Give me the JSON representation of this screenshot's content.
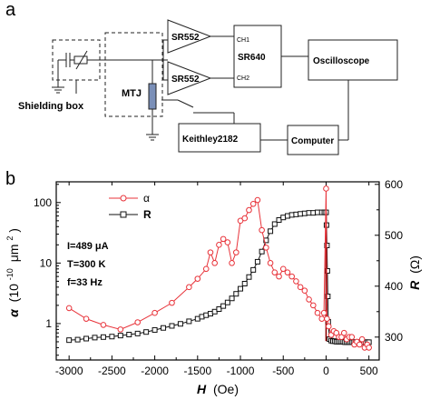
{
  "schematic": {
    "panel_label": "a",
    "components": {
      "amp1": "SR552",
      "amp2": "SR552",
      "lockin": "SR640",
      "ch1": "CH1",
      "ch2": "CH2",
      "scope": "Oscilloscope",
      "mtj": "MTJ",
      "shield": "Shielding box",
      "keithley": "Keithley2182",
      "computer": "Computer"
    }
  },
  "chart_data": {
    "type": "line",
    "panel_label": "b",
    "xlabel_var": "H",
    "xlabel_unit": "(Oe)",
    "ylabel_left_var": "α",
    "ylabel_left_unit": "(10",
    "ylabel_left_exp": "-10",
    "ylabel_left_unit2": "μm",
    "ylabel_left_sup2": "2",
    "ylabel_left_close": ")",
    "ylabel_right_var": "R",
    "ylabel_right_unit": "(Ω)",
    "x_ticks": [
      "-3000",
      "-2500",
      "-2000",
      "-1500",
      "-1000",
      "-500",
      "0",
      "500"
    ],
    "x_tick_values": [
      -3000,
      -2500,
      -2000,
      -1500,
      -1000,
      -500,
      0,
      500
    ],
    "xlim": [
      -3150,
      620
    ],
    "left_axis": {
      "scale": "log",
      "ylim": [
        0.25,
        220
      ],
      "ticks": [
        "1",
        "10",
        "100"
      ],
      "tick_values": [
        1,
        10,
        100
      ]
    },
    "right_axis": {
      "scale": "linear",
      "ylim": [
        255,
        605
      ],
      "ticks": [
        "300",
        "400",
        "500",
        "600"
      ],
      "tick_values": [
        300,
        400,
        500,
        600
      ]
    },
    "annotations": [
      "I=489 μA",
      "T=300 K",
      "f=33 Hz"
    ],
    "legend": {
      "placement": "top-left",
      "entries": [
        "α",
        "R"
      ]
    },
    "series": [
      {
        "name": "α",
        "axis": "left",
        "color": "#e8333a",
        "marker": "circle",
        "x": [
          -3000,
          -2800,
          -2600,
          -2400,
          -2200,
          -2000,
          -1800,
          -1600,
          -1500,
          -1400,
          -1350,
          -1300,
          -1250,
          -1200,
          -1150,
          -1100,
          -1050,
          -1000,
          -950,
          -900,
          -850,
          -800,
          -750,
          -700,
          -650,
          -600,
          -550,
          -500,
          -450,
          -400,
          -350,
          -300,
          -250,
          -200,
          -150,
          -100,
          -50,
          -25,
          0,
          10,
          30,
          60,
          90,
          120,
          150,
          180,
          210,
          240,
          270,
          300,
          330,
          360,
          390,
          420,
          450,
          480,
          500
        ],
        "y": [
          1.8,
          1.2,
          0.95,
          0.8,
          1.05,
          1.5,
          2.2,
          4.0,
          5.5,
          8.0,
          15,
          10,
          20,
          25,
          22,
          10,
          15,
          50,
          55,
          75,
          95,
          110,
          35,
          18,
          10,
          7,
          6,
          8,
          7,
          6,
          5,
          4,
          3.5,
          2.5,
          2.0,
          1.5,
          1.2,
          1.5,
          170,
          1.2,
          0.9,
          0.65,
          0.75,
          0.7,
          0.6,
          0.6,
          0.7,
          0.55,
          0.6,
          0.6,
          0.45,
          0.5,
          0.45,
          0.55,
          0.4,
          0.45,
          0.4
        ]
      },
      {
        "name": "R",
        "axis": "right",
        "color": "#111111",
        "marker": "square",
        "x": [
          -3000,
          -2900,
          -2800,
          -2700,
          -2600,
          -2500,
          -2400,
          -2300,
          -2200,
          -2100,
          -2000,
          -1900,
          -1800,
          -1700,
          -1600,
          -1500,
          -1450,
          -1400,
          -1350,
          -1300,
          -1250,
          -1200,
          -1150,
          -1100,
          -1050,
          -1000,
          -950,
          -900,
          -850,
          -800,
          -750,
          -700,
          -650,
          -600,
          -550,
          -500,
          -450,
          -400,
          -350,
          -300,
          -250,
          -200,
          -150,
          -100,
          -50,
          -20,
          0,
          5,
          10,
          15,
          20,
          25,
          40,
          60,
          80,
          100,
          120,
          140,
          160,
          180,
          200,
          220,
          240,
          260,
          280,
          300,
          320,
          340,
          360,
          380,
          400,
          420,
          440,
          460,
          480,
          500
        ],
        "y": [
          294,
          295,
          297,
          299,
          300,
          301,
          303,
          305,
          307,
          310,
          314,
          318,
          322,
          326,
          331,
          336,
          340,
          343,
          346,
          350,
          355,
          361,
          368,
          376,
          385,
          395,
          405,
          418,
          432,
          448,
          468,
          490,
          508,
          522,
          530,
          535,
          538,
          540,
          541,
          542,
          543,
          544,
          544,
          545,
          545,
          545,
          545,
          520,
          480,
          430,
          380,
          330,
          296,
          293,
          292,
          292,
          291,
          291,
          291,
          291,
          291,
          290,
          290,
          290,
          290,
          290,
          290,
          290,
          290,
          290,
          290,
          290,
          290,
          290,
          290,
          290
        ]
      }
    ]
  },
  "colors": {
    "alpha": "#e8333a",
    "R": "#111111",
    "dark_red": "#8b0000"
  }
}
